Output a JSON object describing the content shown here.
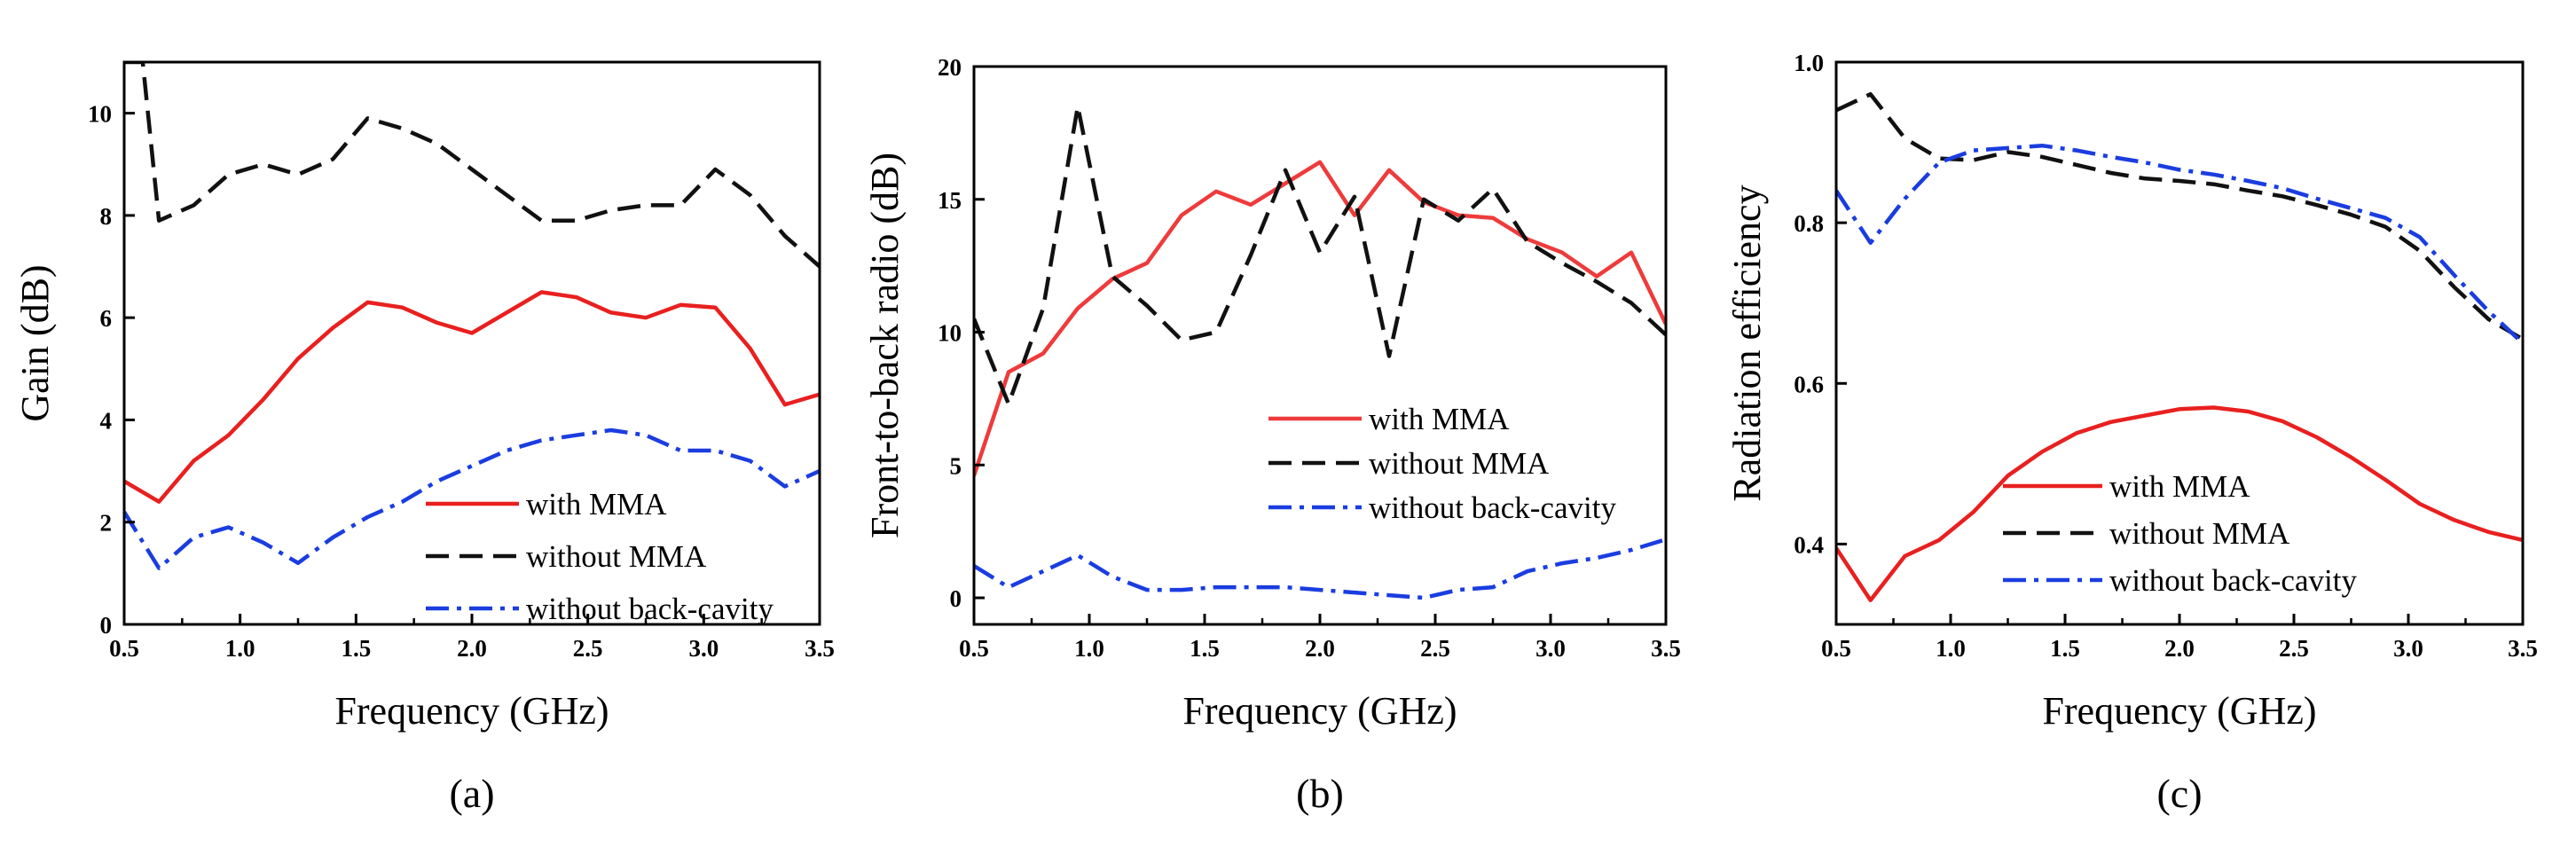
{
  "chart_data": [
    {
      "type": "line",
      "panel_label": "(a)",
      "xlabel": "Frequency (GHz)",
      "ylabel": "Gain (dB)",
      "xlim": [
        0.5,
        3.5
      ],
      "ylim": [
        0,
        11
      ],
      "xticks": [
        0.5,
        1.0,
        1.5,
        2.0,
        2.5,
        3.0,
        3.5
      ],
      "xtick_labels": [
        "0.5",
        "1.0",
        "1.5",
        "2.0",
        "2.5",
        "3.0",
        "3.5"
      ],
      "yticks": [
        0,
        2,
        4,
        6,
        8,
        10
      ],
      "ytick_labels": [
        "0",
        "2",
        "4",
        "6",
        "8",
        "10"
      ],
      "legend_position": "bottom-right",
      "series": [
        {
          "name": "with MMA",
          "color": "#e8201f",
          "dash": "solid",
          "x": [
            0.5,
            0.65,
            0.8,
            0.95,
            1.1,
            1.25,
            1.4,
            1.55,
            1.7,
            1.85,
            2.0,
            2.15,
            2.3,
            2.45,
            2.6,
            2.75,
            2.9,
            3.05,
            3.2,
            3.35,
            3.5
          ],
          "y": [
            2.8,
            2.4,
            3.2,
            3.7,
            4.4,
            5.2,
            5.8,
            6.3,
            6.2,
            5.9,
            5.7,
            6.1,
            6.5,
            6.4,
            6.1,
            6.0,
            6.25,
            6.2,
            5.4,
            4.3,
            4.5
          ]
        },
        {
          "name": "without MMA",
          "color": "#111111",
          "dash": "dashed",
          "x": [
            0.5,
            0.58,
            0.65,
            0.8,
            0.95,
            1.1,
            1.25,
            1.4,
            1.55,
            1.7,
            1.85,
            2.0,
            2.15,
            2.3,
            2.45,
            2.6,
            2.75,
            2.9,
            3.05,
            3.2,
            3.35,
            3.5
          ],
          "y": [
            11.0,
            11.0,
            7.9,
            8.2,
            8.8,
            9.0,
            8.8,
            9.1,
            9.9,
            9.7,
            9.4,
            8.9,
            8.4,
            7.9,
            7.9,
            8.1,
            8.2,
            8.2,
            8.9,
            8.4,
            7.6,
            7.0
          ]
        },
        {
          "name": "without back-cavity",
          "color": "#1a3de0",
          "dash": "dashdot",
          "x": [
            0.5,
            0.65,
            0.8,
            0.95,
            1.1,
            1.25,
            1.4,
            1.55,
            1.7,
            1.85,
            2.0,
            2.15,
            2.3,
            2.45,
            2.6,
            2.75,
            2.9,
            3.05,
            3.2,
            3.35,
            3.5
          ],
          "y": [
            2.2,
            1.1,
            1.7,
            1.9,
            1.6,
            1.2,
            1.7,
            2.1,
            2.4,
            2.8,
            3.1,
            3.4,
            3.6,
            3.7,
            3.8,
            3.7,
            3.4,
            3.4,
            3.2,
            2.7,
            3.0
          ]
        }
      ]
    },
    {
      "type": "line",
      "panel_label": "(b)",
      "xlabel": "Frequency (GHz)",
      "ylabel": "Front-to-back radio (dB)",
      "xlim": [
        0.5,
        3.5
      ],
      "ylim": [
        -1,
        20
      ],
      "xticks": [
        0.5,
        1.0,
        1.5,
        2.0,
        2.5,
        3.0,
        3.5
      ],
      "xtick_labels": [
        "0.5",
        "1.0",
        "1.5",
        "2.0",
        "2.5",
        "3.0",
        "3.5"
      ],
      "yticks": [
        0,
        5,
        10,
        15,
        20
      ],
      "ytick_labels": [
        "0",
        "5",
        "10",
        "15",
        "20"
      ],
      "legend_position": "center-right",
      "series": [
        {
          "name": "with MMA",
          "color": "#ee3b3b",
          "dash": "solid",
          "x": [
            0.5,
            0.65,
            0.8,
            0.95,
            1.1,
            1.25,
            1.4,
            1.55,
            1.7,
            1.85,
            2.0,
            2.15,
            2.3,
            2.45,
            2.6,
            2.75,
            2.9,
            3.05,
            3.2,
            3.35,
            3.5
          ],
          "y": [
            4.6,
            8.5,
            9.2,
            10.9,
            12.0,
            12.6,
            14.4,
            15.3,
            14.8,
            15.6,
            16.4,
            14.4,
            16.1,
            14.9,
            14.4,
            14.3,
            13.5,
            13.0,
            12.1,
            13.0,
            10.3
          ]
        },
        {
          "name": "without MMA",
          "color": "#111111",
          "dash": "dashed",
          "x": [
            0.5,
            0.65,
            0.8,
            0.95,
            1.1,
            1.25,
            1.4,
            1.55,
            1.7,
            1.85,
            2.0,
            2.15,
            2.3,
            2.45,
            2.6,
            2.75,
            2.9,
            3.05,
            3.2,
            3.35,
            3.5
          ],
          "y": [
            10.5,
            7.3,
            10.9,
            18.5,
            12.1,
            11.0,
            9.7,
            10.0,
            12.9,
            16.1,
            13.0,
            15.1,
            9.1,
            15.0,
            14.2,
            15.4,
            13.4,
            12.6,
            11.9,
            11.1,
            9.9
          ]
        },
        {
          "name": "without back-cavity",
          "color": "#1a3de0",
          "dash": "dashdot",
          "x": [
            0.5,
            0.65,
            0.8,
            0.95,
            1.1,
            1.25,
            1.4,
            1.55,
            1.7,
            1.85,
            2.0,
            2.15,
            2.3,
            2.45,
            2.6,
            2.75,
            2.9,
            3.05,
            3.2,
            3.35,
            3.5
          ],
          "y": [
            1.2,
            0.4,
            1.0,
            1.6,
            0.8,
            0.3,
            0.3,
            0.4,
            0.4,
            0.4,
            0.3,
            0.2,
            0.1,
            0.0,
            0.3,
            0.4,
            1.0,
            1.3,
            1.5,
            1.8,
            2.2
          ]
        }
      ]
    },
    {
      "type": "line",
      "panel_label": "(c)",
      "xlabel": "Frequency (GHz)",
      "ylabel": "Radiation efficiency",
      "xlim": [
        0.5,
        3.5
      ],
      "ylim": [
        0.3,
        1.0
      ],
      "xticks": [
        0.5,
        1.0,
        1.5,
        2.0,
        2.5,
        3.0,
        3.5
      ],
      "xtick_labels": [
        "0.5",
        "1.0",
        "1.5",
        "2.0",
        "2.5",
        "3.0",
        "3.5"
      ],
      "yticks": [
        0.4,
        0.6,
        0.8,
        1.0
      ],
      "ytick_labels": [
        "0.4",
        "0.6",
        "0.8",
        "1.0"
      ],
      "legend_position": "bottom-center",
      "series": [
        {
          "name": "with MMA",
          "color": "#e8201f",
          "dash": "solid",
          "x": [
            0.5,
            0.65,
            0.8,
            0.95,
            1.1,
            1.25,
            1.4,
            1.55,
            1.7,
            1.85,
            2.0,
            2.15,
            2.3,
            2.45,
            2.6,
            2.75,
            2.9,
            3.05,
            3.2,
            3.35,
            3.5
          ],
          "y": [
            0.395,
            0.33,
            0.385,
            0.405,
            0.44,
            0.485,
            0.515,
            0.538,
            0.552,
            0.56,
            0.568,
            0.57,
            0.565,
            0.553,
            0.533,
            0.508,
            0.48,
            0.45,
            0.43,
            0.415,
            0.405
          ]
        },
        {
          "name": "without MMA",
          "color": "#111111",
          "dash": "dashed",
          "x": [
            0.5,
            0.65,
            0.8,
            0.95,
            1.1,
            1.25,
            1.4,
            1.55,
            1.7,
            1.85,
            2.0,
            2.15,
            2.3,
            2.45,
            2.6,
            2.75,
            2.9,
            3.05,
            3.2,
            3.35,
            3.5
          ],
          "y": [
            0.94,
            0.96,
            0.905,
            0.88,
            0.878,
            0.888,
            0.882,
            0.872,
            0.862,
            0.855,
            0.852,
            0.848,
            0.84,
            0.833,
            0.822,
            0.81,
            0.795,
            0.765,
            0.72,
            0.68,
            0.655
          ]
        },
        {
          "name": "without back-cavity",
          "color": "#1a3de0",
          "dash": "dashdot",
          "x": [
            0.5,
            0.65,
            0.8,
            0.95,
            1.1,
            1.25,
            1.4,
            1.55,
            1.7,
            1.85,
            2.0,
            2.15,
            2.3,
            2.45,
            2.6,
            2.75,
            2.9,
            3.05,
            3.2,
            3.35,
            3.5
          ],
          "y": [
            0.84,
            0.775,
            0.83,
            0.875,
            0.89,
            0.893,
            0.896,
            0.89,
            0.882,
            0.875,
            0.866,
            0.86,
            0.852,
            0.843,
            0.83,
            0.818,
            0.806,
            0.782,
            0.735,
            0.69,
            0.65
          ]
        }
      ]
    }
  ]
}
